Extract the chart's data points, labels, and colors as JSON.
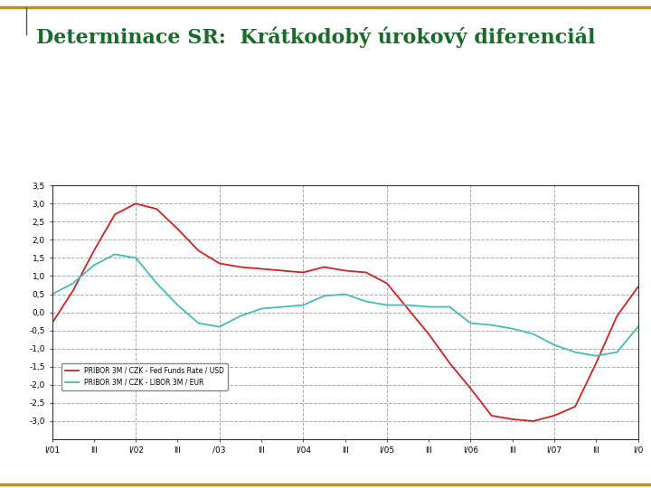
{
  "title": "Determinace SR:  Krátkodobý úrokový diferenciál",
  "title_color": "#1a6b2a",
  "title_fontsize": 16,
  "background_color": "#ffffff",
  "plot_bg_color": "#ffffff",
  "xlim": [
    0,
    28
  ],
  "ylim": [
    -3.5,
    3.5
  ],
  "yticks": [
    -3.0,
    -2.5,
    -2.0,
    -1.5,
    -1.0,
    -0.5,
    0.0,
    0.5,
    1.0,
    1.5,
    2.0,
    2.5,
    3.0,
    3.5
  ],
  "ytick_labels": [
    "-3,0",
    "-2,5",
    "-2,0",
    "-1,5",
    "-1,0",
    "-0,5",
    "0,0",
    "0,5",
    "1,0",
    "1,5",
    "2,0",
    "2,5",
    "3,0",
    "3,5"
  ],
  "xtick_positions": [
    0,
    2,
    4,
    6,
    8,
    10,
    12,
    14,
    16,
    18,
    20,
    22,
    24,
    26,
    28
  ],
  "xtick_labels": [
    "I/01",
    "III",
    "I/02",
    "III",
    "/03",
    "III",
    "I/04",
    "III",
    "I/05",
    "III",
    "I/06",
    "III",
    "I/07",
    "III",
    "I/0"
  ],
  "major_xtick_positions": [
    0,
    4,
    8,
    12,
    16,
    20,
    24,
    28
  ],
  "grid_color": "#aaaaaa",
  "line1_color": "#cc2222",
  "line1_label": "PRIBOR 3M / CZK - Fed Funds Rate / USD",
  "line2_color": "#44bbbb",
  "line2_label": "PRIBOR 3M / CZK - LIBOR 3M / EUR",
  "border_color": "#b8960c",
  "red_x": [
    0,
    1,
    2,
    3,
    4,
    5,
    6,
    7,
    8,
    9,
    10,
    11,
    12,
    13,
    14,
    15,
    16,
    17,
    18,
    19,
    20,
    21,
    22,
    23,
    24,
    25,
    26,
    27,
    28
  ],
  "red_y": [
    -0.3,
    0.6,
    1.7,
    2.7,
    3.0,
    2.85,
    2.3,
    1.7,
    1.35,
    1.25,
    1.2,
    1.15,
    1.1,
    1.25,
    1.15,
    1.1,
    0.8,
    0.1,
    -0.6,
    -1.4,
    -2.1,
    -2.85,
    -2.95,
    -3.0,
    -2.85,
    -2.6,
    -1.4,
    -0.1,
    0.7
  ],
  "cyan_x": [
    0,
    1,
    2,
    3,
    4,
    5,
    6,
    7,
    8,
    9,
    10,
    11,
    12,
    13,
    14,
    15,
    16,
    17,
    18,
    19,
    20,
    21,
    22,
    23,
    24,
    25,
    26,
    27,
    28
  ],
  "cyan_y": [
    0.5,
    0.8,
    1.3,
    1.6,
    1.5,
    0.8,
    0.2,
    -0.3,
    -0.4,
    -0.1,
    0.1,
    0.15,
    0.2,
    0.45,
    0.5,
    0.3,
    0.2,
    0.2,
    0.15,
    0.15,
    -0.3,
    -0.35,
    -0.45,
    -0.6,
    -0.9,
    -1.1,
    -1.2,
    -1.1,
    -0.4
  ]
}
